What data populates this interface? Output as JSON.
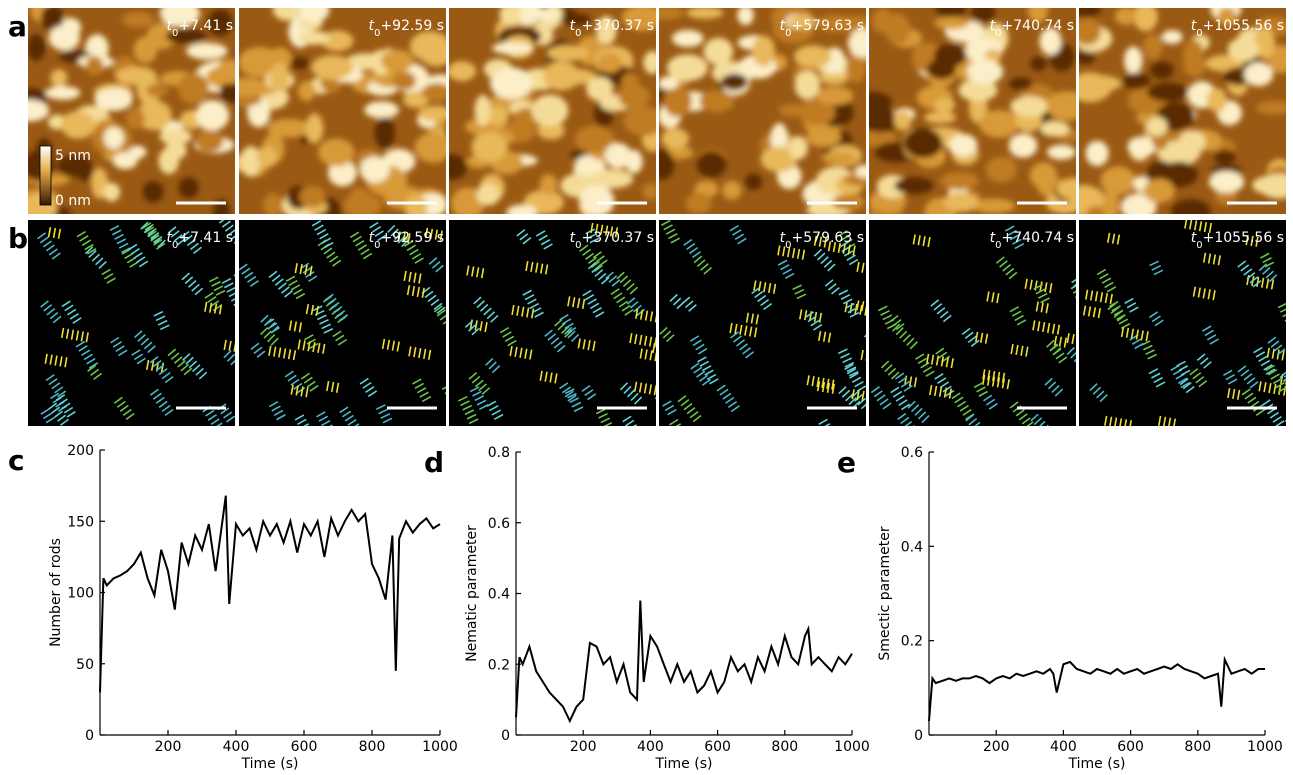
{
  "image_panels": {
    "rows": [
      {
        "label": "a"
      },
      {
        "label": "b"
      }
    ],
    "time_labels": [
      {
        "var": "t",
        "sub": "0",
        "text": "+7.41 s"
      },
      {
        "var": "t",
        "sub": "0",
        "text": "+92.59 s"
      },
      {
        "var": "t",
        "sub": "0",
        "text": "+370.37 s"
      },
      {
        "var": "t",
        "sub": "0",
        "text": "+579.63 s"
      },
      {
        "var": "t",
        "sub": "0",
        "text": "+740.74 s"
      },
      {
        "var": "t",
        "sub": "0",
        "text": "+1055.56 s"
      }
    ],
    "colorbar": {
      "max_label": "5 nm",
      "min_label": "0 nm"
    }
  },
  "chart_data": [
    {
      "type": "line",
      "panel_label": "c",
      "xlabel": "Time (s)",
      "ylabel": "Number of rods",
      "color": "#000000",
      "x": [
        0,
        10,
        20,
        40,
        60,
        80,
        100,
        120,
        140,
        160,
        180,
        200,
        220,
        240,
        260,
        280,
        300,
        320,
        340,
        360,
        370,
        380,
        400,
        420,
        440,
        460,
        480,
        500,
        520,
        540,
        560,
        580,
        600,
        620,
        640,
        660,
        680,
        700,
        720,
        740,
        760,
        780,
        800,
        820,
        840,
        860,
        870,
        880,
        900,
        920,
        940,
        960,
        980,
        1000
      ],
      "values": [
        30,
        110,
        105,
        110,
        112,
        115,
        120,
        128,
        110,
        98,
        130,
        115,
        88,
        135,
        120,
        140,
        130,
        148,
        115,
        150,
        168,
        92,
        148,
        140,
        145,
        130,
        150,
        140,
        148,
        135,
        150,
        128,
        148,
        140,
        150,
        125,
        152,
        140,
        150,
        158,
        150,
        155,
        120,
        110,
        95,
        140,
        45,
        138,
        150,
        142,
        148,
        152,
        145,
        148
      ],
      "xlim": [
        0,
        1000
      ],
      "xticks": [
        200,
        400,
        600,
        800,
        1000
      ],
      "ylim": [
        0,
        200
      ],
      "yticks": [
        0,
        50,
        100,
        150,
        200
      ]
    },
    {
      "type": "line",
      "panel_label": "d",
      "xlabel": "Time (s)",
      "ylabel": "Nematic parameter",
      "color": "#000000",
      "x": [
        0,
        10,
        20,
        40,
        60,
        80,
        100,
        120,
        140,
        160,
        180,
        200,
        220,
        240,
        260,
        280,
        300,
        320,
        340,
        360,
        370,
        380,
        400,
        420,
        440,
        460,
        480,
        500,
        520,
        540,
        560,
        580,
        600,
        620,
        640,
        660,
        680,
        700,
        720,
        740,
        760,
        780,
        800,
        820,
        840,
        860,
        870,
        880,
        900,
        920,
        940,
        960,
        980,
        1000
      ],
      "values": [
        0.05,
        0.22,
        0.2,
        0.25,
        0.18,
        0.15,
        0.12,
        0.1,
        0.08,
        0.04,
        0.08,
        0.1,
        0.26,
        0.25,
        0.2,
        0.22,
        0.15,
        0.2,
        0.12,
        0.1,
        0.38,
        0.15,
        0.28,
        0.25,
        0.2,
        0.15,
        0.2,
        0.15,
        0.18,
        0.12,
        0.14,
        0.18,
        0.12,
        0.15,
        0.22,
        0.18,
        0.2,
        0.15,
        0.22,
        0.18,
        0.25,
        0.2,
        0.28,
        0.22,
        0.2,
        0.28,
        0.3,
        0.2,
        0.22,
        0.2,
        0.18,
        0.22,
        0.2,
        0.23
      ],
      "xlim": [
        0,
        1000
      ],
      "xticks": [
        200,
        400,
        600,
        800,
        1000
      ],
      "ylim": [
        0,
        0.8
      ],
      "yticks": [
        0,
        0.2,
        0.4,
        0.6,
        0.8
      ]
    },
    {
      "type": "line",
      "panel_label": "e",
      "xlabel": "Time (s)",
      "ylabel": "Smectic parameter",
      "color": "#000000",
      "x": [
        0,
        10,
        20,
        40,
        60,
        80,
        100,
        120,
        140,
        160,
        180,
        200,
        220,
        240,
        260,
        280,
        300,
        320,
        340,
        360,
        370,
        380,
        400,
        420,
        440,
        460,
        480,
        500,
        520,
        540,
        560,
        580,
        600,
        620,
        640,
        660,
        680,
        700,
        720,
        740,
        760,
        780,
        800,
        820,
        840,
        860,
        870,
        880,
        900,
        920,
        940,
        960,
        980,
        1000
      ],
      "values": [
        0.03,
        0.12,
        0.11,
        0.115,
        0.12,
        0.115,
        0.12,
        0.12,
        0.125,
        0.12,
        0.11,
        0.12,
        0.125,
        0.12,
        0.13,
        0.125,
        0.13,
        0.135,
        0.13,
        0.14,
        0.13,
        0.09,
        0.15,
        0.155,
        0.14,
        0.135,
        0.13,
        0.14,
        0.135,
        0.13,
        0.14,
        0.13,
        0.135,
        0.14,
        0.13,
        0.135,
        0.14,
        0.145,
        0.14,
        0.15,
        0.14,
        0.135,
        0.13,
        0.12,
        0.125,
        0.13,
        0.06,
        0.16,
        0.13,
        0.135,
        0.14,
        0.13,
        0.14,
        0.14
      ],
      "xlim": [
        0,
        1000
      ],
      "xticks": [
        200,
        400,
        600,
        800,
        1000
      ],
      "ylim": [
        0,
        0.6
      ],
      "yticks": [
        0,
        0.2,
        0.4,
        0.6
      ]
    }
  ]
}
